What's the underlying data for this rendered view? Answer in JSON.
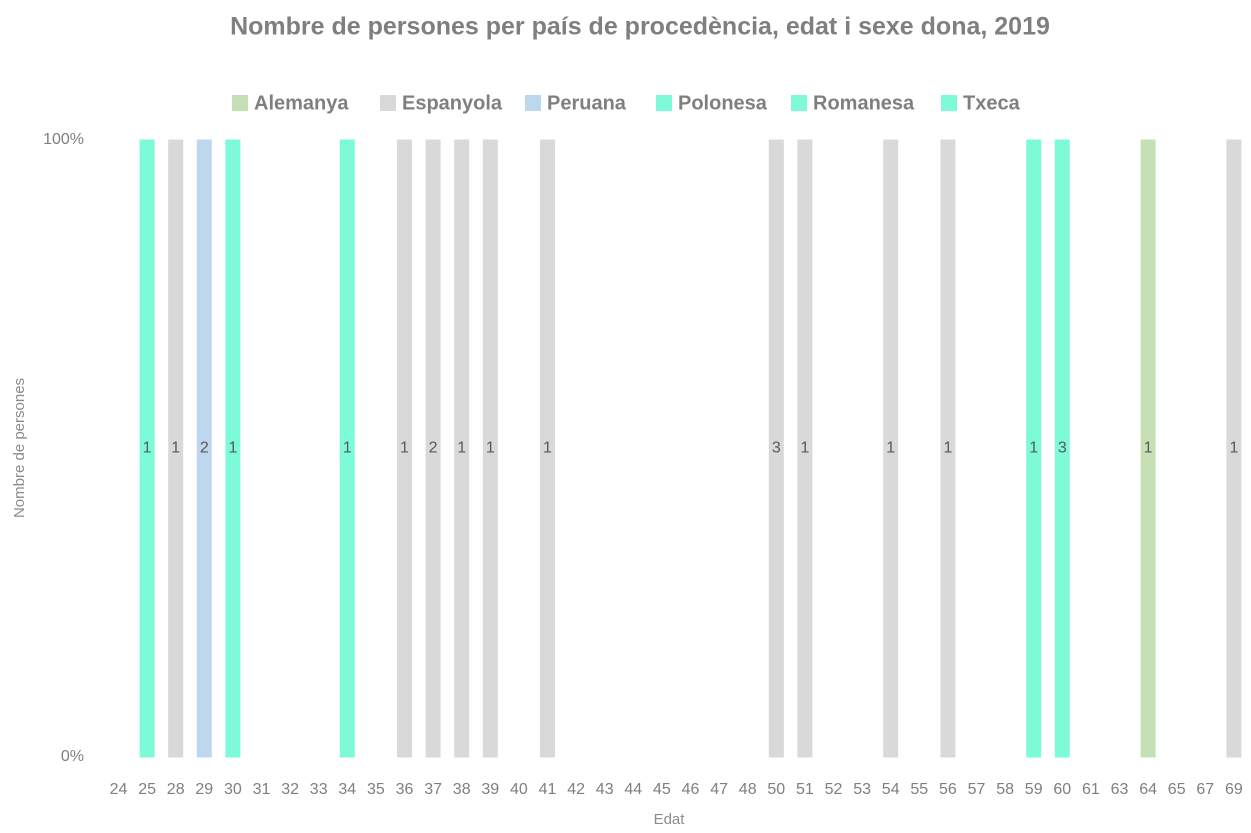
{
  "chart_data": {
    "type": "stacked-bar-100",
    "title": "Nombre de persones per país de procedència, edat i sexe dona, 2019",
    "x_label": "Edat",
    "y_label": "Nombre de persones",
    "categories": [
      "24",
      "25",
      "28",
      "29",
      "30",
      "31",
      "32",
      "33",
      "34",
      "35",
      "36",
      "37",
      "38",
      "39",
      "40",
      "41",
      "42",
      "43",
      "44",
      "45",
      "46",
      "47",
      "48",
      "50",
      "51",
      "52",
      "53",
      "54",
      "55",
      "56",
      "57",
      "58",
      "59",
      "60",
      "61",
      "63",
      "64",
      "65",
      "67",
      "69"
    ],
    "series": [
      {
        "name": "Alemanya",
        "color": "#c5e0b4",
        "values": [
          null,
          null,
          null,
          null,
          null,
          null,
          null,
          null,
          null,
          null,
          null,
          null,
          null,
          null,
          null,
          null,
          null,
          null,
          null,
          null,
          null,
          null,
          null,
          null,
          null,
          null,
          null,
          null,
          null,
          null,
          null,
          null,
          null,
          null,
          null,
          null,
          1,
          null,
          null,
          null
        ]
      },
      {
        "name": "Espanyola",
        "color": "#d9d9d9",
        "values": [
          null,
          null,
          1,
          null,
          null,
          null,
          null,
          null,
          null,
          null,
          1,
          2,
          1,
          1,
          null,
          1,
          null,
          null,
          null,
          null,
          null,
          null,
          null,
          3,
          1,
          null,
          null,
          1,
          null,
          1,
          null,
          null,
          null,
          null,
          null,
          null,
          null,
          null,
          null,
          1
        ]
      },
      {
        "name": "Peruana",
        "color": "#bdd7ee",
        "values": [
          null,
          null,
          null,
          2,
          null,
          null,
          null,
          null,
          null,
          null,
          null,
          null,
          null,
          null,
          null,
          null,
          null,
          null,
          null,
          null,
          null,
          null,
          null,
          null,
          null,
          null,
          null,
          null,
          null,
          null,
          null,
          null,
          null,
          null,
          null,
          null,
          null,
          null,
          null,
          null
        ]
      },
      {
        "name": "Polonesa",
        "color": "#7dfbd9",
        "values": [
          null,
          null,
          null,
          null,
          null,
          null,
          null,
          null,
          null,
          null,
          null,
          null,
          null,
          null,
          null,
          null,
          null,
          null,
          null,
          null,
          null,
          null,
          null,
          null,
          null,
          null,
          null,
          null,
          null,
          null,
          null,
          null,
          1,
          null,
          null,
          null,
          null,
          null,
          null,
          null
        ]
      },
      {
        "name": "Romanesa",
        "color": "#7dfbd9",
        "values": [
          null,
          1,
          null,
          null,
          1,
          null,
          null,
          null,
          null,
          null,
          null,
          null,
          null,
          null,
          null,
          null,
          null,
          null,
          null,
          null,
          null,
          null,
          null,
          null,
          null,
          null,
          null,
          null,
          null,
          null,
          null,
          null,
          null,
          3,
          null,
          null,
          null,
          null,
          null,
          null
        ]
      },
      {
        "name": "Txeca",
        "color": "#7dfbd9",
        "values": [
          null,
          null,
          null,
          null,
          null,
          null,
          null,
          null,
          1,
          null,
          null,
          null,
          null,
          null,
          null,
          null,
          null,
          null,
          null,
          null,
          null,
          null,
          null,
          null,
          null,
          null,
          null,
          null,
          null,
          null,
          null,
          null,
          null,
          null,
          null,
          null,
          null,
          null,
          null,
          null
        ]
      }
    ],
    "ylim": [
      0,
      100
    ],
    "yticks": [
      {
        "value": 0,
        "label": "0%"
      },
      {
        "value": 100,
        "label": "100%"
      }
    ],
    "legend": "top"
  }
}
